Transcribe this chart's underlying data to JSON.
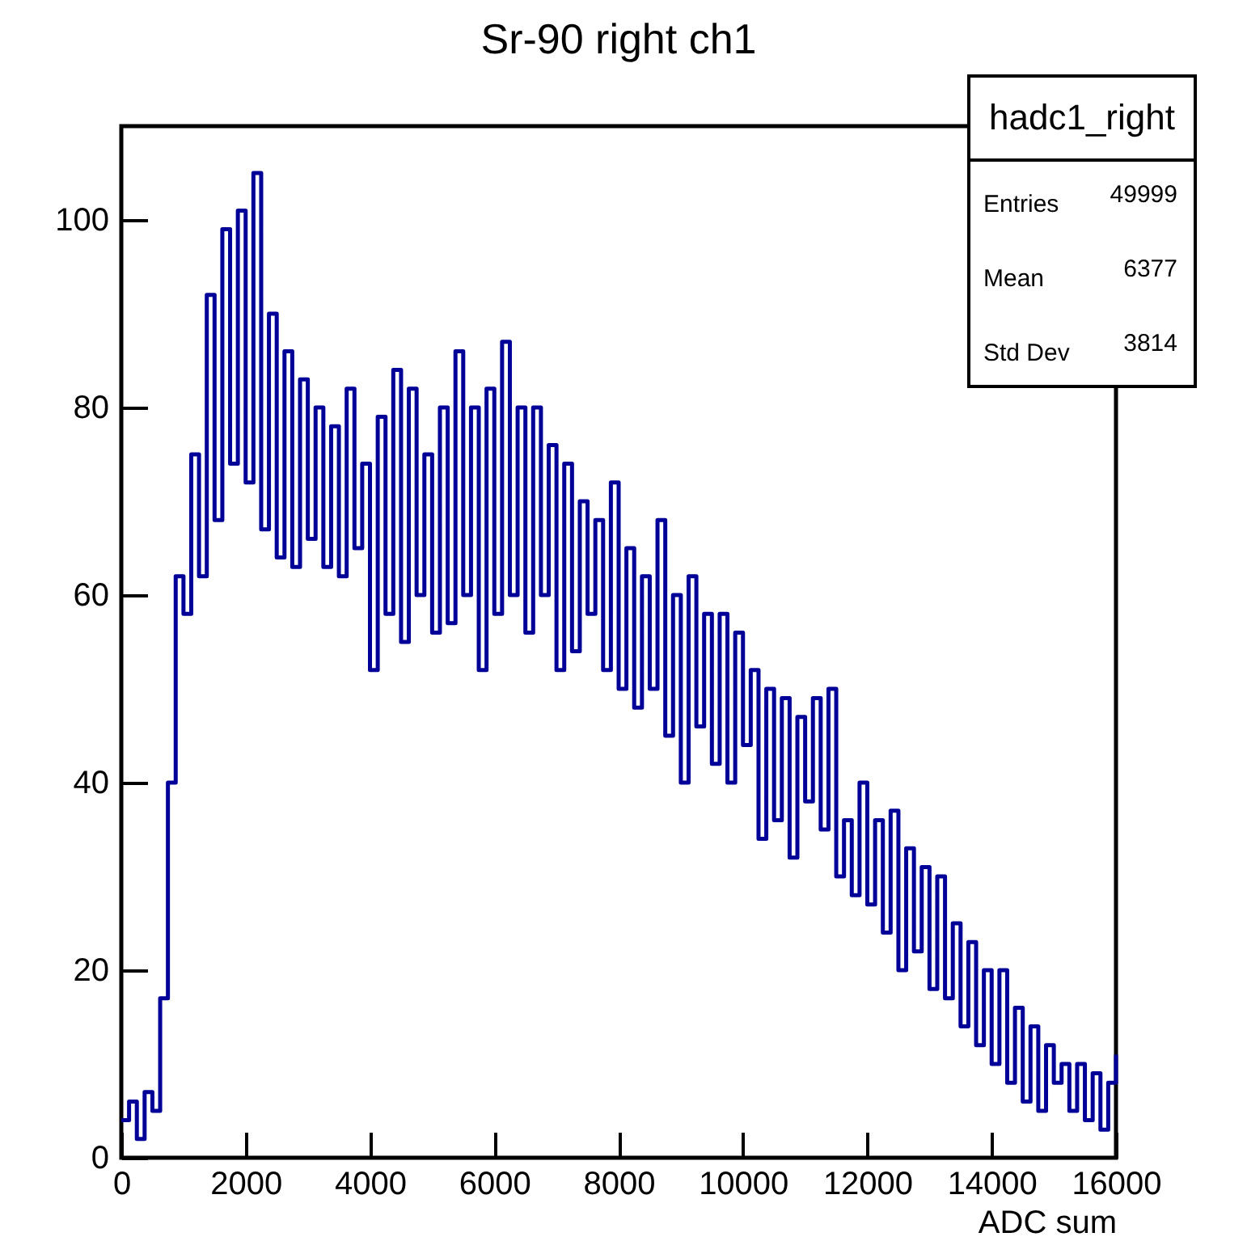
{
  "chart_data": {
    "type": "step",
    "title": "Sr-90 right ch1",
    "xlabel": "ADC sum",
    "xlim": [
      0,
      16000
    ],
    "xticks": [
      0,
      2000,
      4000,
      6000,
      8000,
      10000,
      12000,
      14000,
      16000
    ],
    "ylim": [
      0,
      110
    ],
    "yticks": [
      0,
      20,
      40,
      60,
      80,
      100
    ],
    "grid": false,
    "marker": "none",
    "line_style": "solid",
    "annotations": [
      "hadc1_right",
      "Entries",
      "49999",
      "Mean",
      "6377",
      "Std Dev",
      "3814"
    ],
    "series": [
      {
        "color": "#000099",
        "x": [
          0,
          125,
          250,
          375,
          500,
          625,
          750,
          875,
          1000,
          1125,
          1250,
          1375,
          1500,
          1625,
          1750,
          1875,
          2000,
          2125,
          2250,
          2375,
          2500,
          2625,
          2750,
          2875,
          3000,
          3125,
          3250,
          3375,
          3500,
          3625,
          3750,
          3875,
          4000,
          4125,
          4250,
          4375,
          4500,
          4625,
          4750,
          4875,
          5000,
          5125,
          5250,
          5375,
          5500,
          5625,
          5750,
          5875,
          6000,
          6125,
          6250,
          6375,
          6500,
          6625,
          6750,
          6875,
          7000,
          7125,
          7250,
          7375,
          7500,
          7625,
          7750,
          7875,
          8000,
          8125,
          8250,
          8375,
          8500,
          8625,
          8750,
          8875,
          9000,
          9125,
          9250,
          9375,
          9500,
          9625,
          9750,
          9875,
          10000,
          10125,
          10250,
          10375,
          10500,
          10625,
          10750,
          10875,
          11000,
          11125,
          11250,
          11375,
          11500,
          11625,
          11750,
          11875,
          12000,
          12125,
          12250,
          12375,
          12500,
          12625,
          12750,
          12875,
          13000,
          13125,
          13250,
          13375,
          13500,
          13625,
          13750,
          13875,
          14000,
          14125,
          14250,
          14375,
          14500,
          14625,
          14750,
          14875,
          15000,
          15125,
          15250,
          15375,
          15500,
          15625,
          15750,
          15875,
          16000
        ],
        "values": [
          4,
          6,
          2,
          7,
          5,
          17,
          40,
          62,
          58,
          75,
          62,
          92,
          68,
          99,
          74,
          101,
          72,
          105,
          67,
          90,
          64,
          86,
          63,
          83,
          66,
          80,
          63,
          78,
          62,
          82,
          65,
          74,
          52,
          79,
          58,
          84,
          55,
          82,
          60,
          75,
          56,
          80,
          57,
          86,
          60,
          80,
          52,
          82,
          58,
          87,
          60,
          80,
          56,
          80,
          60,
          76,
          52,
          74,
          54,
          70,
          58,
          68,
          52,
          72,
          50,
          65,
          48,
          62,
          50,
          68,
          45,
          60,
          40,
          62,
          46,
          58,
          42,
          58,
          40,
          56,
          44,
          52,
          34,
          50,
          36,
          49,
          32,
          47,
          38,
          49,
          35,
          50,
          30,
          36,
          28,
          40,
          27,
          36,
          24,
          37,
          20,
          33,
          22,
          31,
          18,
          30,
          17,
          25,
          14,
          23,
          12,
          20,
          10,
          20,
          8,
          16,
          6,
          14,
          5,
          12,
          8,
          10,
          5,
          10,
          4,
          9,
          3,
          8,
          11
        ]
      }
    ]
  }
}
